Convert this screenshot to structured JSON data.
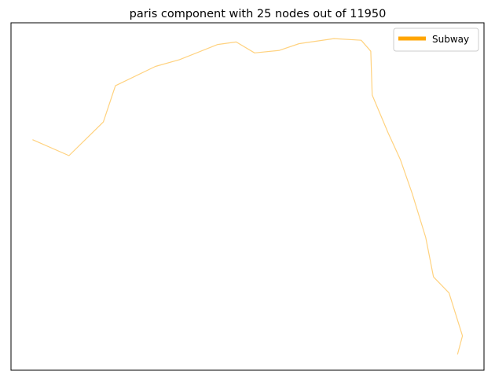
{
  "chart_data": {
    "type": "line",
    "title": "paris component with 25 nodes out of 11950",
    "xlabel": "",
    "ylabel": "",
    "axes_ticks_visible": false,
    "grid": false,
    "legend_placement": "top-right",
    "series": [
      {
        "name": "Subway",
        "line_color": "#ffd27f",
        "legend_color": "#ffa500",
        "points": [
          [
            2.2786,
            48.8935
          ],
          [
            2.2889,
            48.8916
          ],
          [
            2.2986,
            48.8956
          ],
          [
            2.302,
            48.8999
          ],
          [
            2.3133,
            48.9022
          ],
          [
            2.3201,
            48.903
          ],
          [
            2.3309,
            48.9048
          ],
          [
            2.3361,
            48.9051
          ],
          [
            2.3413,
            48.9038
          ],
          [
            2.3483,
            48.9041
          ],
          [
            2.3539,
            48.9049
          ],
          [
            2.3637,
            48.9055
          ],
          [
            2.3714,
            48.9053
          ],
          [
            2.3741,
            48.904
          ],
          [
            2.3745,
            48.8988
          ],
          [
            2.379,
            48.8943
          ],
          [
            2.3825,
            48.8911
          ],
          [
            2.3858,
            48.8871
          ],
          [
            2.3896,
            48.8819
          ],
          [
            2.3918,
            48.8772
          ],
          [
            2.3962,
            48.8753
          ],
          [
            2.4,
            48.8702
          ],
          [
            2.3986,
            48.868
          ]
        ]
      }
    ]
  }
}
